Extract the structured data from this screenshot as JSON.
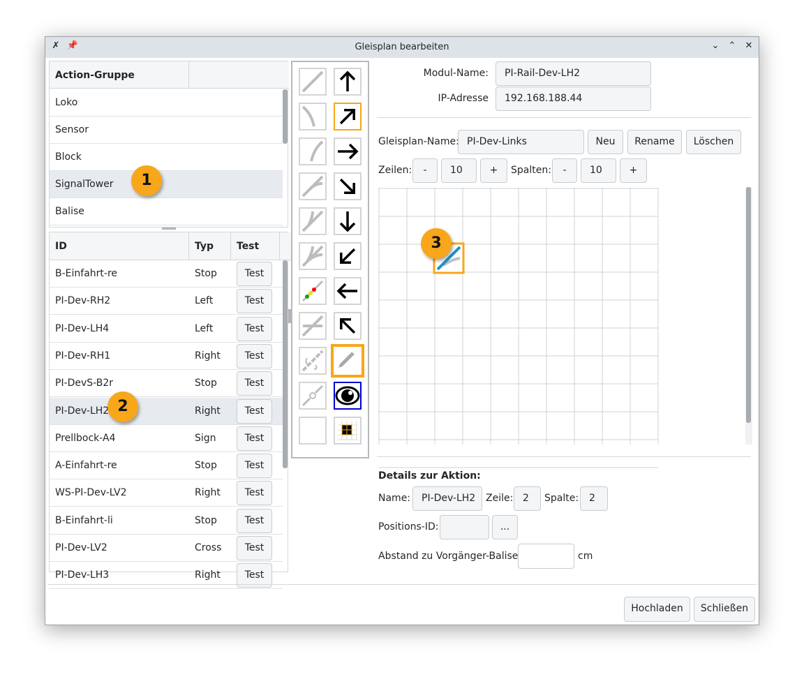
{
  "window": {
    "title": "Gleisplan bearbeiten",
    "icons": [
      "app-icon",
      "pin-icon",
      "minimize-icon",
      "maximize-icon",
      "close-icon"
    ]
  },
  "groups": {
    "header": "Action-Gruppe",
    "items": [
      "Loko",
      "Sensor",
      "Block",
      "SignalTower",
      "Balise"
    ],
    "selected": "SignalTower"
  },
  "actions": {
    "headers": [
      "ID",
      "Typ",
      "Test"
    ],
    "test_label": "Test",
    "rows": [
      {
        "id": "B-Einfahrt-re",
        "typ": "Stop"
      },
      {
        "id": "PI-Dev-RH2",
        "typ": "Left"
      },
      {
        "id": "PI-Dev-LH4",
        "typ": "Left"
      },
      {
        "id": "PI-Dev-RH1",
        "typ": "Right"
      },
      {
        "id": "PI-DevS-B2r",
        "typ": "Stop"
      },
      {
        "id": "PI-Dev-LH2",
        "typ": "Right"
      },
      {
        "id": "Prellbock-A4",
        "typ": "Sign"
      },
      {
        "id": "A-Einfahrt-re",
        "typ": "Stop"
      },
      {
        "id": "WS-PI-Dev-LV2",
        "typ": "Right"
      },
      {
        "id": "B-Einfahrt-li",
        "typ": "Stop"
      },
      {
        "id": "PI-Dev-LV2",
        "typ": "Cross"
      },
      {
        "id": "PI-Dev-LH3",
        "typ": "Right"
      }
    ],
    "selected": "PI-Dev-LH2"
  },
  "toolbox": {
    "left": [
      "straight-track-icon",
      "curve-left-icon",
      "curve-right-icon",
      "switch-left-icon",
      "switch-y-icon",
      "three-way-switch-icon",
      "signal-icon",
      "crossing-icon",
      "sensor-icon",
      "balise-icon",
      "empty-icon"
    ],
    "right": [
      "arrow-up-icon",
      "arrow-up-right-icon",
      "arrow-right-icon",
      "arrow-down-right-icon",
      "arrow-down-icon",
      "arrow-down-left-icon",
      "arrow-left-icon",
      "arrow-up-left-icon",
      "pencil-icon",
      "eye-icon",
      "grid-icon"
    ],
    "selected_direction": "arrow-up-right-icon",
    "selected_tool": "pencil-icon"
  },
  "module": {
    "name_label": "Modul-Name:",
    "name": "PI-Rail-Dev-LH2",
    "ip_label": "IP-Adresse",
    "ip": "192.168.188.44"
  },
  "plan": {
    "name_label": "Gleisplan-Name:",
    "name": "PI-Dev-Links",
    "new": "Neu",
    "rename": "Rename",
    "delete": "Löschen",
    "rows_label": "Zeilen:",
    "rows": "10",
    "cols_label": "Spalten:",
    "cols": "10",
    "minus": "-",
    "plus": "+"
  },
  "details": {
    "title": "Details zur Aktion:",
    "name_label": "Name:",
    "name": "PI-Dev-LH2",
    "row_label": "Zeile:",
    "row": "2",
    "col_label": "Spalte:",
    "col": "2",
    "pos_label": "Positions-ID:",
    "pos": "",
    "more": "...",
    "dist_label": "Abstand zu Vorgänger-Balise:",
    "dist": "",
    "unit": "cm"
  },
  "footer": {
    "upload": "Hochladen",
    "close": "Schließen"
  },
  "badges": [
    "1",
    "2",
    "3"
  ],
  "colors": {
    "accent": "#f8a61a",
    "selection": "#1e90c8"
  }
}
